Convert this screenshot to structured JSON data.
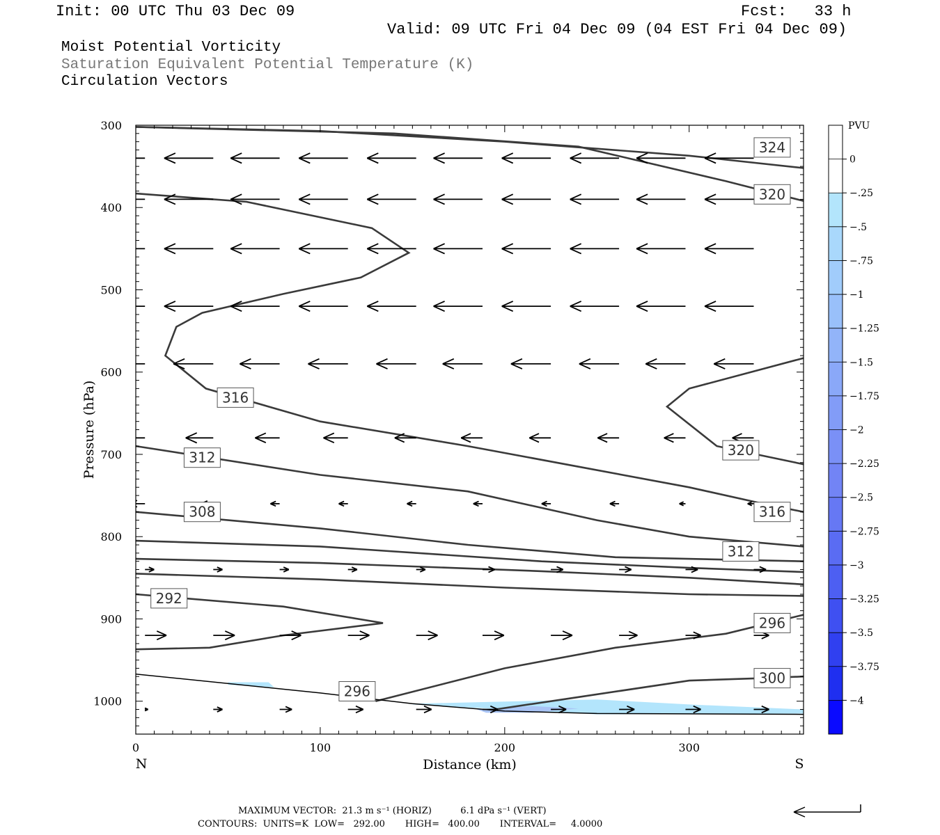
{
  "header": {
    "init": "Init: 00 UTC Thu 03 Dec 09",
    "fcst": "Fcst:   33 h",
    "valid": "Valid: 09 UTC Fri 04 Dec 09 (04 EST Fri 04 Dec 09)",
    "title1": "Moist Potential Vorticity",
    "title2": "Saturation Equivalent Potential Temperature (K)",
    "title3": "Circulation Vectors"
  },
  "footer": {
    "max_vector": "MAXIMUM VECTOR:  21.3 m s⁻¹ (HORIZ)          6.1 dPa s⁻¹ (VERT)",
    "contours": "CONTOURS:  UNITS=K  LOW=   292.00       HIGH=   400.00       INTERVAL=     4.0000"
  },
  "colors": {
    "contour": "#3a3a3a",
    "light_blue": "#b3e5fc",
    "mid_blue": "#a9c4f5"
  },
  "chart_data": {
    "type": "contour",
    "xlabel": "Distance (km)",
    "ylabel": "Pressure (hPa)",
    "xlim": [
      0,
      362
    ],
    "ylim": [
      300,
      1040
    ],
    "x_ticks": [
      0,
      100,
      200,
      300
    ],
    "y_ticks": [
      300,
      400,
      500,
      600,
      700,
      800,
      900,
      1000
    ],
    "x_end_labels": {
      "left": "N",
      "right": "S"
    },
    "colorbar": {
      "title": "PVU",
      "labels": [
        "0",
        "-.25",
        "-.5",
        "-.75",
        "-1",
        "-1.25",
        "-1.5",
        "-1.75",
        "-2",
        "-2.25",
        "-2.5",
        "-2.75",
        "-3",
        "-3.25",
        "-3.5",
        "-3.75",
        "-4"
      ],
      "colors": [
        "#ffffff",
        "#ffffff",
        "#b3e5fc",
        "#a9d8fc",
        "#a1ccfb",
        "#99c0fa",
        "#92b4f9",
        "#8aa8f8",
        "#829cf7",
        "#7a90f6",
        "#7284f5",
        "#6678f4",
        "#5a6cf3",
        "#4d5ff2",
        "#3f50f1",
        "#3040f0",
        "#1f2ff0",
        "#0a0aff"
      ]
    },
    "contour_labels": [
      {
        "label": "324",
        "x": 345,
        "p": 327
      },
      {
        "label": "320",
        "x": 345,
        "p": 384
      },
      {
        "label": "316",
        "x": 54,
        "p": 631
      },
      {
        "label": "320",
        "x": 328,
        "p": 695
      },
      {
        "label": "312",
        "x": 36,
        "p": 704
      },
      {
        "label": "316",
        "x": 345,
        "p": 770
      },
      {
        "label": "308",
        "x": 36,
        "p": 770
      },
      {
        "label": "312",
        "x": 328,
        "p": 818
      },
      {
        "label": "292",
        "x": 18,
        "p": 875
      },
      {
        "label": "296",
        "x": 345,
        "p": 905
      },
      {
        "label": "300",
        "x": 345,
        "p": 972
      },
      {
        "label": "296",
        "x": 120,
        "p": 988
      }
    ],
    "contours": [
      {
        "theta": 324,
        "points": [
          [
            0,
            302
          ],
          [
            100,
            307
          ],
          [
            200,
            320
          ],
          [
            300,
            337
          ],
          [
            362,
            352
          ]
        ]
      },
      {
        "theta": 320,
        "points": [
          [
            0,
            302
          ],
          [
            140,
            310
          ],
          [
            240,
            326
          ],
          [
            320,
            368
          ],
          [
            362,
            392
          ]
        ]
      },
      {
        "theta": 316,
        "points": [
          [
            0,
            383
          ],
          [
            60,
            393
          ],
          [
            128,
            425
          ],
          [
            148,
            455
          ],
          [
            122,
            485
          ],
          [
            80,
            505
          ],
          [
            36,
            528
          ],
          [
            22,
            545
          ],
          [
            16,
            580
          ],
          [
            38,
            620
          ],
          [
            100,
            660
          ],
          [
            180,
            690
          ],
          [
            240,
            715
          ],
          [
            300,
            740
          ],
          [
            340,
            760
          ],
          [
            362,
            770
          ]
        ]
      },
      {
        "theta": 320,
        "points": [
          [
            362,
            583
          ],
          [
            300,
            620
          ],
          [
            288,
            642
          ],
          [
            315,
            690
          ],
          [
            362,
            712
          ]
        ]
      },
      {
        "theta": 312,
        "points": [
          [
            0,
            690
          ],
          [
            100,
            725
          ],
          [
            180,
            745
          ],
          [
            250,
            780
          ],
          [
            300,
            800
          ],
          [
            362,
            812
          ]
        ]
      },
      {
        "theta": 308,
        "points": [
          [
            0,
            770
          ],
          [
            100,
            790
          ],
          [
            180,
            810
          ],
          [
            260,
            825
          ],
          [
            362,
            830
          ]
        ]
      },
      {
        "theta": 304,
        "points": [
          [
            0,
            805
          ],
          [
            100,
            812
          ],
          [
            220,
            830
          ],
          [
            300,
            838
          ],
          [
            362,
            843
          ]
        ]
      },
      {
        "theta": 300,
        "points": [
          [
            0,
            827
          ],
          [
            100,
            832
          ],
          [
            220,
            842
          ],
          [
            300,
            850
          ],
          [
            362,
            858
          ]
        ]
      },
      {
        "theta": 296,
        "points": [
          [
            0,
            845
          ],
          [
            100,
            852
          ],
          [
            200,
            862
          ],
          [
            300,
            870
          ],
          [
            362,
            872
          ]
        ]
      },
      {
        "theta": 292,
        "points": [
          [
            0,
            870
          ],
          [
            80,
            885
          ],
          [
            134,
            905
          ],
          [
            80,
            920
          ],
          [
            40,
            935
          ],
          [
            0,
            937
          ]
        ]
      },
      {
        "theta": 296,
        "points": [
          [
            130,
            1000
          ],
          [
            200,
            960
          ],
          [
            260,
            935
          ],
          [
            320,
            918
          ],
          [
            362,
            895
          ]
        ]
      },
      {
        "theta": 300,
        "points": [
          [
            195,
            1010
          ],
          [
            240,
            995
          ],
          [
            300,
            975
          ],
          [
            340,
            972
          ],
          [
            362,
            970
          ]
        ]
      }
    ],
    "terrain": [
      [
        0,
        967
      ],
      [
        100,
        990
      ],
      [
        150,
        1003
      ],
      [
        200,
        1012
      ],
      [
        250,
        1015
      ],
      [
        362,
        1016
      ]
    ],
    "shading": [
      {
        "pvu": -0.25,
        "points": [
          [
            50,
            977
          ],
          [
            72,
            977
          ],
          [
            75,
            983
          ],
          [
            50,
            980
          ]
        ]
      },
      {
        "pvu": -0.25,
        "points": [
          [
            150,
            1003
          ],
          [
            250,
            998
          ],
          [
            300,
            1004
          ],
          [
            362,
            1010
          ],
          [
            362,
            1015
          ],
          [
            250,
            1016
          ],
          [
            150,
            1004
          ]
        ]
      },
      {
        "pvu": -0.5,
        "points": [
          [
            185,
            1010
          ],
          [
            215,
            1006
          ],
          [
            240,
            1009
          ],
          [
            215,
            1014
          ],
          [
            190,
            1014
          ]
        ]
      }
    ],
    "vector_rows": [
      {
        "p": 340,
        "u": [
          -16,
          -16,
          -16,
          -16,
          -16,
          -16,
          -16,
          -16,
          -16,
          -16
        ]
      },
      {
        "p": 390,
        "u": [
          -16,
          -16,
          -16,
          -16,
          -16,
          -16,
          -16,
          -16,
          -16,
          -16
        ]
      },
      {
        "p": 450,
        "u": [
          -16,
          -16,
          -16,
          -16,
          -16,
          -16,
          -16,
          -16,
          -16,
          -16
        ]
      },
      {
        "p": 520,
        "u": [
          -16,
          -16,
          -16,
          -16,
          -16,
          -16,
          -16,
          -16,
          -16,
          -16
        ]
      },
      {
        "p": 590,
        "u": [
          -14,
          -13,
          -13,
          -13,
          -13,
          -13,
          -13,
          -13,
          -13,
          -13
        ]
      },
      {
        "p": 680,
        "u": [
          -10,
          -9,
          -8,
          -8,
          -7,
          -7,
          -7,
          -7,
          -7,
          -7
        ]
      },
      {
        "p": 760,
        "u": [
          -5,
          -4,
          -3,
          -3,
          -3,
          -3,
          -3,
          -3,
          -2,
          -2
        ]
      },
      {
        "p": 840,
        "u": [
          3,
          3,
          3,
          3,
          3,
          4,
          4,
          4,
          4,
          4
        ]
      },
      {
        "p": 920,
        "u": [
          7,
          7,
          7,
          7,
          7,
          7,
          7,
          6,
          5,
          5
        ]
      },
      {
        "p": 1010,
        "u": [
          1,
          3,
          4,
          5,
          5,
          5,
          5,
          5,
          5,
          5
        ]
      }
    ],
    "vector_x": [
      5,
      42,
      78,
      115,
      152,
      188,
      225,
      262,
      298,
      335
    ]
  }
}
